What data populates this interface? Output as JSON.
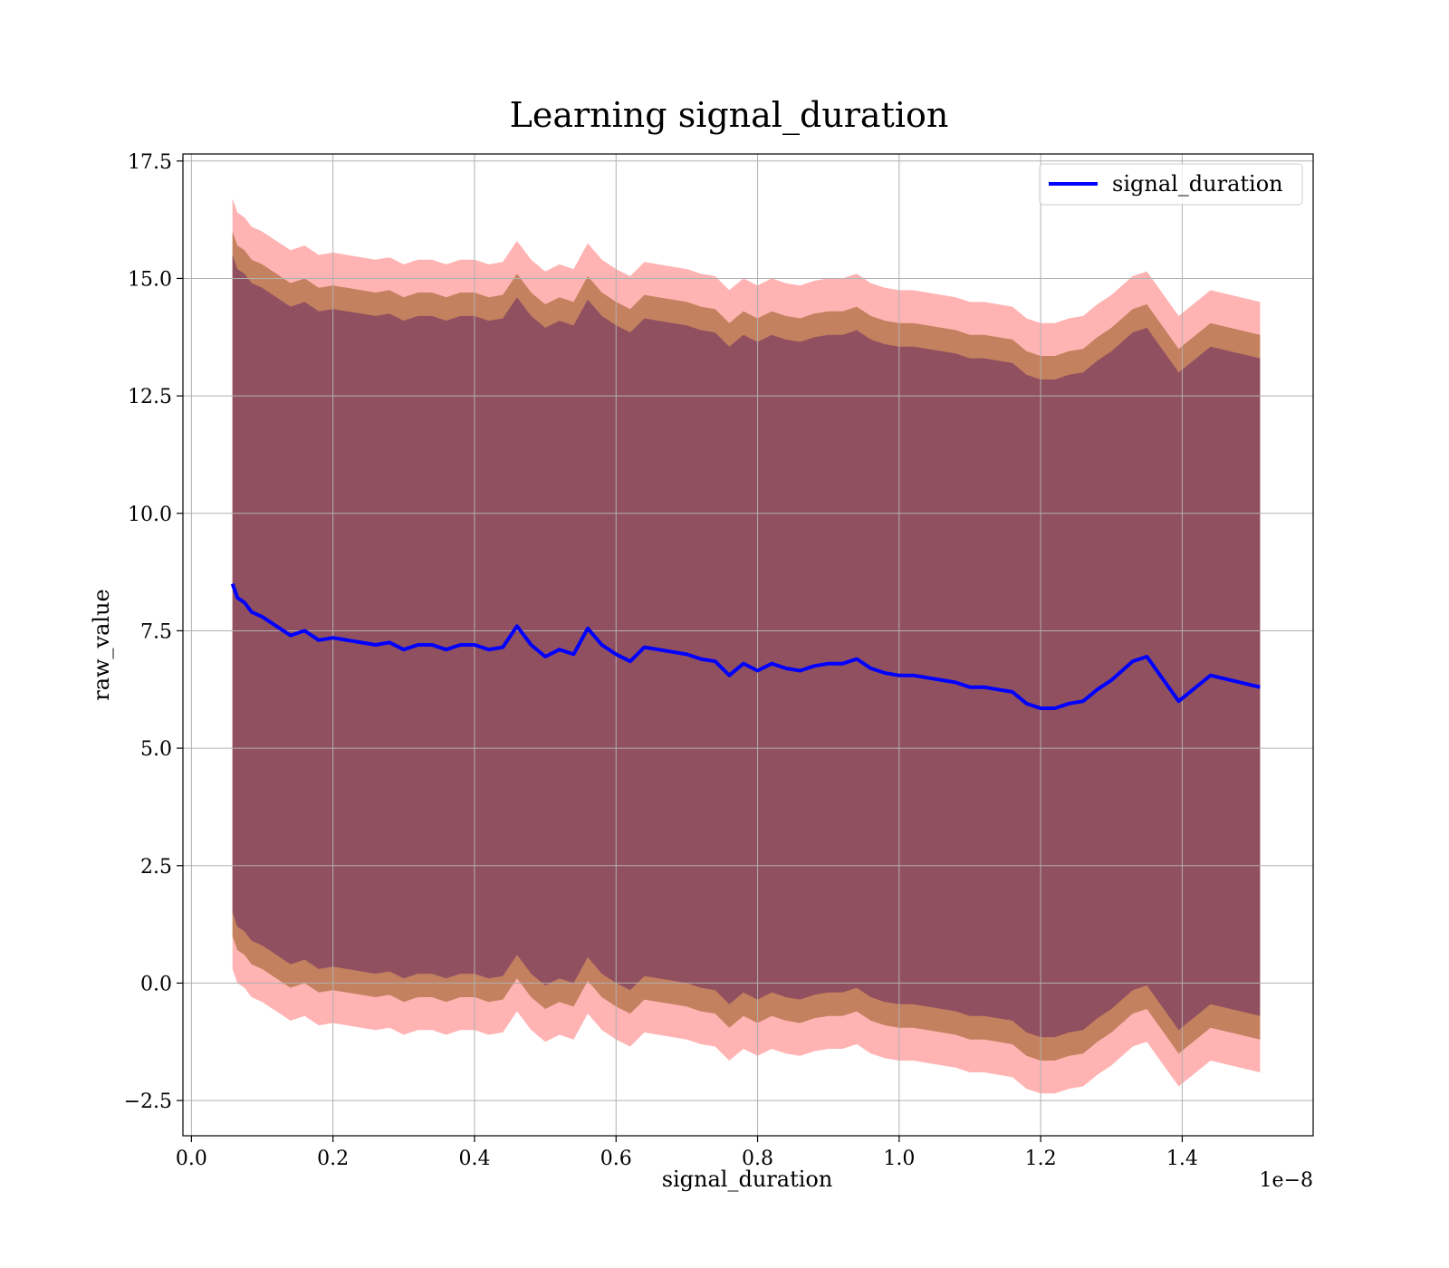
{
  "chart_data": {
    "type": "line",
    "title": "Learning signal_duration",
    "xlabel": "signal_duration",
    "ylabel": "raw_value",
    "x_offset_text": "1e−8",
    "xlim": [
      -0.012,
      1.585
    ],
    "ylim": [
      -3.25,
      17.65
    ],
    "xticks": [
      0.0,
      0.2,
      0.4,
      0.6,
      0.8,
      1.0,
      1.2,
      1.4
    ],
    "xtick_labels": [
      "0.0",
      "0.2",
      "0.4",
      "0.6",
      "0.8",
      "1.0",
      "1.2",
      "1.4"
    ],
    "yticks": [
      -2.5,
      0.0,
      2.5,
      5.0,
      7.5,
      10.0,
      12.5,
      15.0,
      17.5
    ],
    "ytick_labels": [
      "−2.5",
      "0.0",
      "2.5",
      "5.0",
      "7.5",
      "10.0",
      "12.5",
      "15.0",
      "17.5"
    ],
    "grid": true,
    "legend": {
      "position": "top-right",
      "entries": [
        "signal_duration"
      ]
    },
    "colors": {
      "line": "#0000ff",
      "band_outer": "#ff8080",
      "band_middle": "#b87850",
      "band_inner": "#804060"
    },
    "band_half_widths": {
      "inner": 7.0,
      "middle": 7.5,
      "outer": 8.2
    },
    "series": [
      {
        "name": "signal_duration",
        "x": [
          0.058,
          0.065,
          0.075,
          0.085,
          0.1,
          0.12,
          0.14,
          0.16,
          0.18,
          0.2,
          0.22,
          0.24,
          0.26,
          0.28,
          0.3,
          0.32,
          0.34,
          0.36,
          0.38,
          0.4,
          0.42,
          0.44,
          0.46,
          0.48,
          0.5,
          0.52,
          0.54,
          0.56,
          0.58,
          0.6,
          0.62,
          0.64,
          0.66,
          0.68,
          0.7,
          0.72,
          0.74,
          0.76,
          0.78,
          0.8,
          0.82,
          0.84,
          0.86,
          0.88,
          0.9,
          0.92,
          0.94,
          0.96,
          0.98,
          1.0,
          1.02,
          1.04,
          1.06,
          1.08,
          1.1,
          1.12,
          1.14,
          1.16,
          1.18,
          1.2,
          1.22,
          1.24,
          1.26,
          1.28,
          1.3,
          1.33,
          1.35,
          1.395,
          1.44,
          1.51
        ],
        "y": [
          8.5,
          8.2,
          8.1,
          7.9,
          7.8,
          7.6,
          7.4,
          7.5,
          7.3,
          7.35,
          7.3,
          7.25,
          7.2,
          7.25,
          7.1,
          7.2,
          7.2,
          7.1,
          7.2,
          7.2,
          7.1,
          7.15,
          7.6,
          7.2,
          6.95,
          7.1,
          7.0,
          7.55,
          7.2,
          7.0,
          6.85,
          7.15,
          7.1,
          7.05,
          7.0,
          6.9,
          6.85,
          6.55,
          6.8,
          6.65,
          6.8,
          6.7,
          6.65,
          6.75,
          6.8,
          6.8,
          6.9,
          6.7,
          6.6,
          6.55,
          6.55,
          6.5,
          6.45,
          6.4,
          6.3,
          6.3,
          6.25,
          6.2,
          5.95,
          5.85,
          5.85,
          5.95,
          6.0,
          6.25,
          6.45,
          6.85,
          6.95,
          6.0,
          6.55,
          6.3
        ]
      }
    ]
  }
}
